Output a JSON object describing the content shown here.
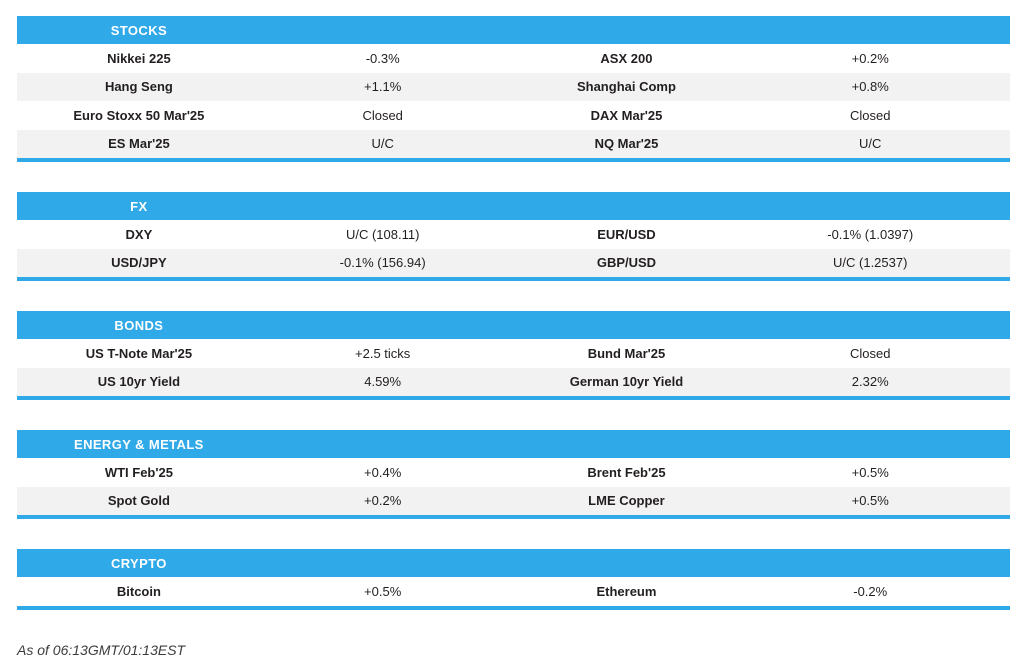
{
  "theme": {
    "accent_color": "#30a9e8",
    "alt_row_color": "#f2f2f2",
    "text_color": "#231f20"
  },
  "footer": {
    "text": "As of 06:13GMT/01:13EST"
  },
  "sections": [
    {
      "title": "STOCKS",
      "rows": [
        [
          "Nikkei 225",
          "-0.3%",
          "ASX 200",
          "+0.2%"
        ],
        [
          "Hang Seng",
          "+1.1%",
          "Shanghai Comp",
          "+0.8%"
        ],
        [
          "Euro Stoxx 50 Mar'25",
          "Closed",
          "DAX Mar'25",
          "Closed"
        ],
        [
          "ES Mar'25",
          "U/C",
          "NQ Mar'25",
          "U/C"
        ]
      ]
    },
    {
      "title": "FX",
      "rows": [
        [
          "DXY",
          "U/C (108.11)",
          "EUR/USD",
          "-0.1% (1.0397)"
        ],
        [
          "USD/JPY",
          "-0.1% (156.94)",
          "GBP/USD",
          "U/C (1.2537)"
        ]
      ]
    },
    {
      "title": "BONDS",
      "rows": [
        [
          "US T-Note Mar'25",
          "+2.5 ticks",
          "Bund Mar'25",
          "Closed"
        ],
        [
          "US 10yr Yield",
          "4.59%",
          "German 10yr Yield",
          "2.32%"
        ]
      ]
    },
    {
      "title": "ENERGY & METALS",
      "rows": [
        [
          "WTI Feb'25",
          "+0.4%",
          "Brent Feb'25",
          "+0.5%"
        ],
        [
          "Spot Gold",
          "+0.2%",
          "LME Copper",
          "+0.5%"
        ]
      ]
    },
    {
      "title": "CRYPTO",
      "rows": [
        [
          "Bitcoin",
          "+0.5%",
          "Ethereum",
          "-0.2%"
        ]
      ]
    }
  ]
}
